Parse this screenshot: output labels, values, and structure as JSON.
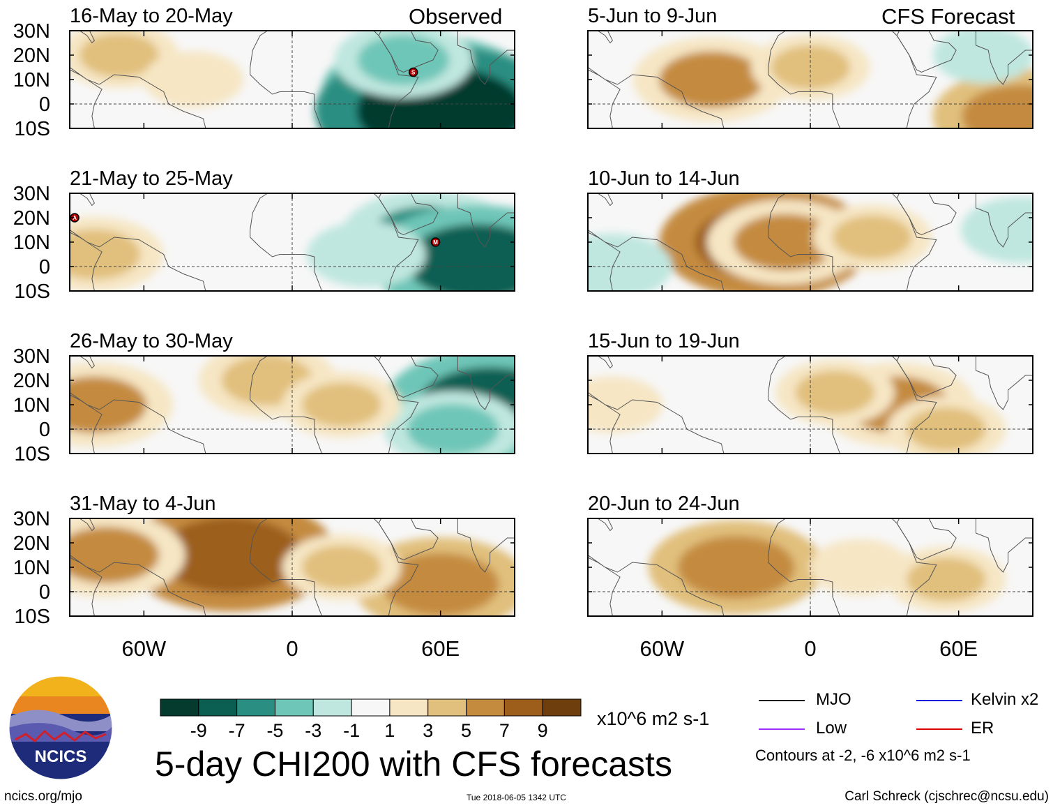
{
  "figure": {
    "main_title": "5-day CHI200 with CFS forecasts",
    "units": "x10^6 m2 s-1",
    "contour_note": "Contours at -2, -6 x10^6 m2 s-1",
    "site": "ncics.org/mjo",
    "timestamp": "Tue 2018-06-05 1342 UTC",
    "author": "Carl Schreck (cjschrec@ncsu.edu)",
    "logo_text": "NCICS",
    "observed_label": "Observed",
    "forecast_label": "CFS Forecast"
  },
  "colors": {
    "mjo": "#000000",
    "low": "#9b30ff",
    "kelvin": "#0000dd",
    "er": "#dd0000",
    "colorbar": [
      "#053b2f",
      "#0b5e52",
      "#2a8f82",
      "#6ec6b8",
      "#bfe7df",
      "#f7f7f7",
      "#f6e6c4",
      "#e1c07d",
      "#c48b3f",
      "#9c5e1a",
      "#6e3f0c"
    ]
  },
  "legend": {
    "mjo": "MJO",
    "kelvin": "Kelvin x2",
    "low": "Low",
    "er": "ER"
  },
  "chart_data": {
    "type": "heatmap",
    "variable": "CHI200 5-day mean anomaly",
    "colorbar": {
      "bounds": [
        -11,
        -9,
        -7,
        -5,
        -3,
        -1,
        1,
        3,
        5,
        7,
        9,
        11
      ],
      "tick_labels": [
        "-9",
        "-7",
        "-5",
        "-3",
        "-1",
        "1",
        "3",
        "5",
        "7",
        "9"
      ]
    },
    "lat_ticks": [
      "30N",
      "20N",
      "10N",
      "0",
      "10S"
    ],
    "lat_values": [
      30,
      20,
      10,
      0,
      -10
    ],
    "lon_ticks": [
      "60W",
      "0",
      "60E"
    ],
    "lon_values": [
      -60,
      0,
      60
    ],
    "lon_range": [
      -90,
      90
    ],
    "lat_range": [
      -10,
      30
    ],
    "panels": [
      {
        "title": "16-May to 20-May",
        "kind": "observed",
        "storms": [
          {
            "label": "S",
            "lon": 49,
            "lat": 13
          }
        ],
        "blobs": [
          {
            "lon": 55,
            "lat": 5,
            "value": -8
          },
          {
            "lon": 60,
            "lat": -3,
            "value": -10
          },
          {
            "lon": 45,
            "lat": 18,
            "value": -4
          },
          {
            "lon": -70,
            "lat": 20,
            "value": 3
          },
          {
            "lon": -40,
            "lat": 10,
            "value": 2
          }
        ]
      },
      {
        "title": "21-May to 25-May",
        "kind": "observed",
        "storms": [
          {
            "label": "A",
            "lon": -88,
            "lat": 20
          },
          {
            "label": "M",
            "lon": 58,
            "lat": 10
          }
        ],
        "blobs": [
          {
            "lon": 55,
            "lat": 12,
            "value": -6
          },
          {
            "lon": 75,
            "lat": 2,
            "value": -8
          },
          {
            "lon": 30,
            "lat": 5,
            "value": -3
          },
          {
            "lon": -80,
            "lat": 5,
            "value": 4
          }
        ]
      },
      {
        "title": "26-May to 30-May",
        "kind": "observed",
        "storms": [],
        "blobs": [
          {
            "lon": 80,
            "lat": 10,
            "value": -8
          },
          {
            "lon": 65,
            "lat": 0,
            "value": -4
          },
          {
            "lon": -80,
            "lat": 10,
            "value": 5
          },
          {
            "lon": -10,
            "lat": 20,
            "value": 4
          },
          {
            "lon": 20,
            "lat": 10,
            "value": 3
          }
        ]
      },
      {
        "title": "31-May to 4-Jun",
        "kind": "observed",
        "storms": [],
        "blobs": [
          {
            "lon": -25,
            "lat": 15,
            "value": 8
          },
          {
            "lon": -75,
            "lat": 15,
            "value": 5
          },
          {
            "lon": 60,
            "lat": 3,
            "value": 6
          },
          {
            "lon": 20,
            "lat": 10,
            "value": 3
          }
        ]
      },
      {
        "title": "5-Jun to 9-Jun",
        "kind": "forecast",
        "storms": [],
        "blobs": [
          {
            "lon": -40,
            "lat": 10,
            "value": 5
          },
          {
            "lon": 0,
            "lat": 15,
            "value": 3
          },
          {
            "lon": 85,
            "lat": -5,
            "value": 6
          },
          {
            "lon": 70,
            "lat": 20,
            "value": -2
          }
        ]
      },
      {
        "title": "10-Jun to 14-Jun",
        "kind": "forecast",
        "storms": [],
        "blobs": [
          {
            "lon": -18,
            "lat": 10,
            "value": 8
          },
          {
            "lon": -10,
            "lat": 10,
            "value": 5
          },
          {
            "lon": 25,
            "lat": 12,
            "value": 3
          },
          {
            "lon": -80,
            "lat": 0,
            "value": -3
          },
          {
            "lon": 85,
            "lat": 15,
            "value": -3
          }
        ]
      },
      {
        "title": "15-Jun to 19-Jun",
        "kind": "forecast",
        "storms": [],
        "blobs": [
          {
            "lon": 35,
            "lat": 10,
            "value": 5
          },
          {
            "lon": 10,
            "lat": 15,
            "value": 3
          },
          {
            "lon": 55,
            "lat": 0,
            "value": 3
          },
          {
            "lon": -80,
            "lat": 10,
            "value": 2
          }
        ]
      },
      {
        "title": "20-Jun to 24-Jun",
        "kind": "forecast",
        "storms": [],
        "blobs": [
          {
            "lon": -30,
            "lat": 10,
            "value": 6
          },
          {
            "lon": 20,
            "lat": 10,
            "value": 2
          },
          {
            "lon": 55,
            "lat": 5,
            "value": 3
          }
        ]
      }
    ],
    "contour_levels": [
      -2,
      -6
    ]
  }
}
